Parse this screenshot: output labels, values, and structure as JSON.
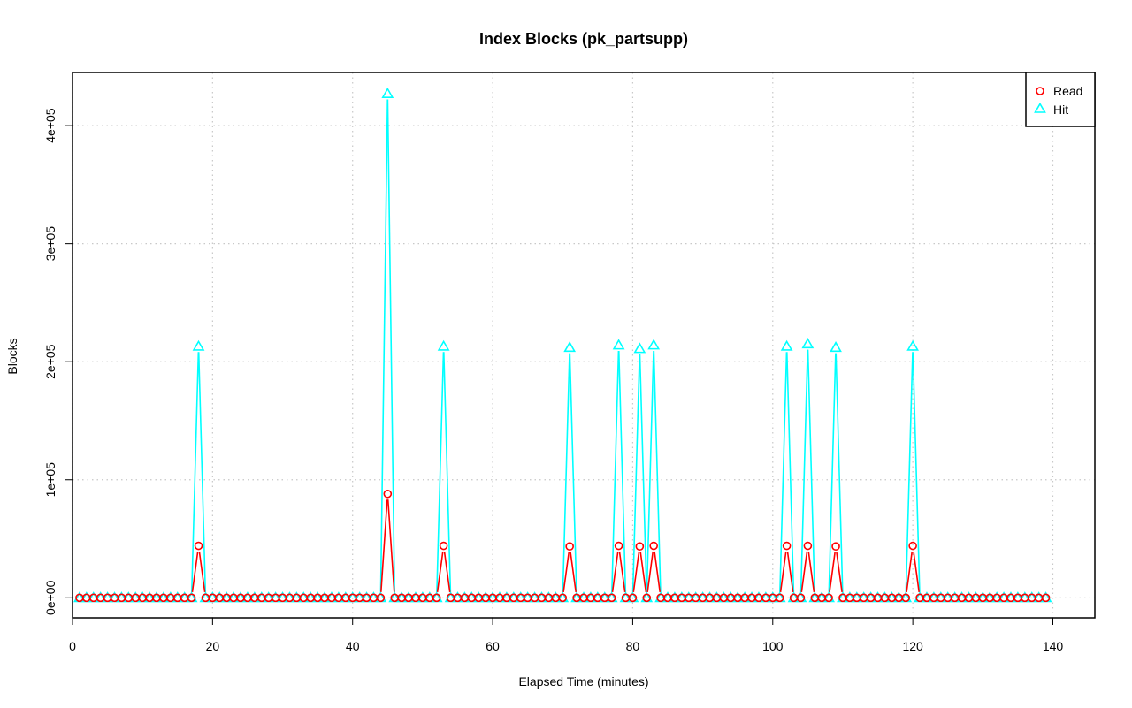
{
  "chart_data": {
    "type": "line",
    "title": "Index Blocks (pk_partsupp)",
    "xlabel": "Elapsed Time (minutes)",
    "ylabel": "Blocks",
    "xlim": [
      0,
      146
    ],
    "ylim": [
      -17000,
      445000
    ],
    "x_ticks": [
      0,
      20,
      40,
      60,
      80,
      100,
      120,
      140
    ],
    "x_tick_labels": [
      "0",
      "20",
      "40",
      "60",
      "80",
      "100",
      "120",
      "140"
    ],
    "y_ticks": [
      0,
      100000,
      200000,
      300000,
      400000
    ],
    "y_tick_labels": [
      "0e+00",
      "1e+05",
      "2e+05",
      "3e+05",
      "4e+05"
    ],
    "grid": true,
    "legend_position": "top-right",
    "x_start": 1,
    "x_end": 139,
    "series": [
      {
        "name": "Read",
        "color": "#ff0000",
        "marker": "circle",
        "baseline": 0,
        "peaks": [
          [
            18,
            44000
          ],
          [
            45,
            88000
          ],
          [
            53,
            44000
          ],
          [
            71,
            43500
          ],
          [
            78,
            44000
          ],
          [
            81,
            43500
          ],
          [
            83,
            44000
          ],
          [
            102,
            44000
          ],
          [
            105,
            44000
          ],
          [
            109,
            43500
          ],
          [
            120,
            44000
          ]
        ]
      },
      {
        "name": "Hit",
        "color": "#00ffff",
        "marker": "triangle",
        "baseline": 0,
        "peaks": [
          [
            18,
            213000
          ],
          [
            45,
            427000
          ],
          [
            53,
            213000
          ],
          [
            71,
            212000
          ],
          [
            78,
            214000
          ],
          [
            81,
            211000
          ],
          [
            83,
            214000
          ],
          [
            102,
            213000
          ],
          [
            105,
            215000
          ],
          [
            109,
            212000
          ],
          [
            120,
            213000
          ]
        ]
      }
    ]
  }
}
